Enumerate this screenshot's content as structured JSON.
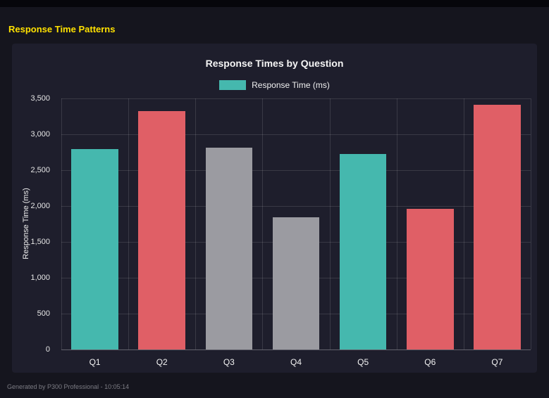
{
  "page": {
    "title": "Response Time Patterns",
    "footer": "Generated by P300 Professional - 10:05:14"
  },
  "chart_data": {
    "type": "bar",
    "title": "Response Times by Question",
    "legend": [
      {
        "label": "Response Time (ms)",
        "color": "#45b8ae"
      }
    ],
    "categories": [
      "Q1",
      "Q2",
      "Q3",
      "Q4",
      "Q5",
      "Q6",
      "Q7"
    ],
    "values": [
      2790,
      3320,
      2810,
      1840,
      2730,
      1960,
      3410
    ],
    "bar_colors": [
      "#45b8ae",
      "#e05f66",
      "#9b9ba1",
      "#9b9ba1",
      "#45b8ae",
      "#e05f66",
      "#e05f66"
    ],
    "xlabel": "",
    "ylabel": "Response Time (ms)",
    "ylim": [
      0,
      3500
    ],
    "yticks": [
      "0",
      "500",
      "1,000",
      "1,500",
      "2,000",
      "2,500",
      "3,000",
      "3,500"
    ],
    "ytick_values": [
      0,
      500,
      1000,
      1500,
      2000,
      2500,
      3000,
      3500
    ],
    "grid": true,
    "legend_position": "top"
  }
}
